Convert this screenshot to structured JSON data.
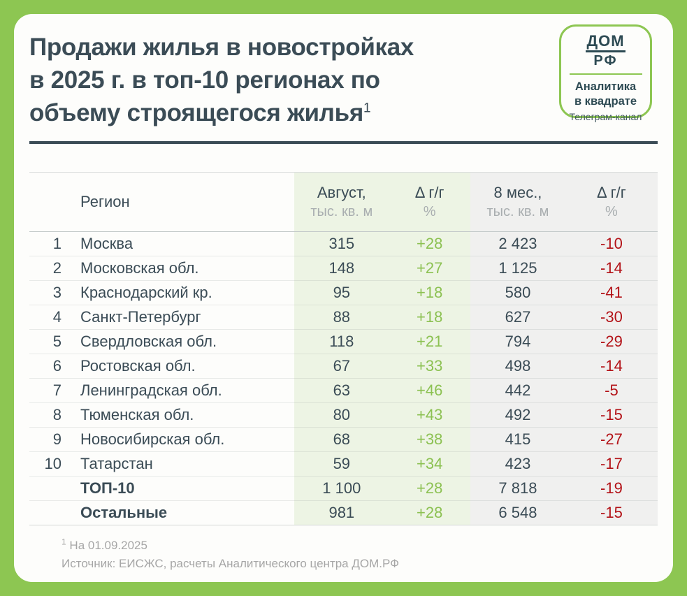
{
  "title": {
    "line1": "Продажи жилья в новостройках",
    "line2": "в 2025 г. в топ-10 регионах по",
    "line3": "объему строящегося жилья",
    "footnote_marker": "1"
  },
  "badge": {
    "logo_top": "ДОМ",
    "logo_bottom": "РФ",
    "title_line1": "Аналитика",
    "title_line2": "в квадрате",
    "subtitle": "Телеграм-канал"
  },
  "table": {
    "header": {
      "region": "Регион",
      "aug_main": "Август,",
      "aug_sub": "тыс. кв. м",
      "d1_main": "Δ г/г",
      "d1_sub": "%",
      "mes_main": "8 мес.,",
      "mes_sub": "тыс. кв. м",
      "d2_main": "Δ г/г",
      "d2_sub": "%"
    },
    "rows": [
      {
        "rank": "1",
        "region": "Москва",
        "aug": "315",
        "yoy_aug": "+28",
        "m8": "2 423",
        "yoy_m8": "-10"
      },
      {
        "rank": "2",
        "region": "Московская обл.",
        "aug": "148",
        "yoy_aug": "+27",
        "m8": "1 125",
        "yoy_m8": "-14"
      },
      {
        "rank": "3",
        "region": "Краснодарский кр.",
        "aug": "95",
        "yoy_aug": "+18",
        "m8": "580",
        "yoy_m8": "-41"
      },
      {
        "rank": "4",
        "region": "Санкт-Петербург",
        "aug": "88",
        "yoy_aug": "+18",
        "m8": "627",
        "yoy_m8": "-30"
      },
      {
        "rank": "5",
        "region": "Свердловская обл.",
        "aug": "118",
        "yoy_aug": "+21",
        "m8": "794",
        "yoy_m8": "-29"
      },
      {
        "rank": "6",
        "region": "Ростовская обл.",
        "aug": "67",
        "yoy_aug": "+33",
        "m8": "498",
        "yoy_m8": "-14"
      },
      {
        "rank": "7",
        "region": "Ленинградская обл.",
        "aug": "63",
        "yoy_aug": "+46",
        "m8": "442",
        "yoy_m8": "-5"
      },
      {
        "rank": "8",
        "region": "Тюменская обл.",
        "aug": "80",
        "yoy_aug": "+43",
        "m8": "492",
        "yoy_m8": "-15"
      },
      {
        "rank": "9",
        "region": "Новосибирская обл.",
        "aug": "68",
        "yoy_aug": "+38",
        "m8": "415",
        "yoy_m8": "-27"
      },
      {
        "rank": "10",
        "region": "Татарстан",
        "aug": "59",
        "yoy_aug": "+34",
        "m8": "423",
        "yoy_m8": "-17"
      },
      {
        "rank": "",
        "region": "ТОП-10",
        "aug": "1 100",
        "yoy_aug": "+28",
        "m8": "7 818",
        "yoy_m8": "-19"
      },
      {
        "rank": "",
        "region": "Остальные",
        "aug": "981",
        "yoy_aug": "+28",
        "m8": "6 548",
        "yoy_m8": "-15"
      }
    ]
  },
  "footnotes": {
    "marker": "1",
    "line1": " На 01.09.2025",
    "line2": "Источник: ЕИСЖС, расчеты Аналитического центра ДОМ.РФ"
  },
  "colors": {
    "frame_green": "#8dc652",
    "positive_green": "#8cc152",
    "negative_red": "#b31217",
    "text_dark": "#3b4c56",
    "green_column_bg": "#edf4e4",
    "gray_column_bg": "#f0f0ef"
  },
  "chart_data": {
    "type": "table",
    "title": "Продажи жилья в новостройках в 2025 г. в топ-10 регионах по объему строящегося жилья",
    "columns": [
      "Регион",
      "Август, тыс. кв. м",
      "Δ г/г, %",
      "8 мес., тыс. кв. м",
      "Δ г/г, %"
    ],
    "rows": [
      [
        "Москва",
        315,
        28,
        2423,
        -10
      ],
      [
        "Московская обл.",
        148,
        27,
        1125,
        -14
      ],
      [
        "Краснодарский кр.",
        95,
        18,
        580,
        -41
      ],
      [
        "Санкт-Петербург",
        88,
        18,
        627,
        -30
      ],
      [
        "Свердловская обл.",
        118,
        21,
        794,
        -29
      ],
      [
        "Ростовская обл.",
        67,
        33,
        498,
        -14
      ],
      [
        "Ленинградская обл.",
        63,
        46,
        442,
        -5
      ],
      [
        "Тюменская обл.",
        80,
        43,
        492,
        -15
      ],
      [
        "Новосибирская обл.",
        68,
        38,
        415,
        -27
      ],
      [
        "Татарстан",
        59,
        34,
        423,
        -17
      ],
      [
        "ТОП-10",
        1100,
        28,
        7818,
        -19
      ],
      [
        "Остальные",
        981,
        28,
        6548,
        -15
      ]
    ],
    "notes": [
      "На 01.09.2025",
      "Источник: ЕИСЖС, расчеты Аналитического центра ДОМ.РФ"
    ]
  }
}
